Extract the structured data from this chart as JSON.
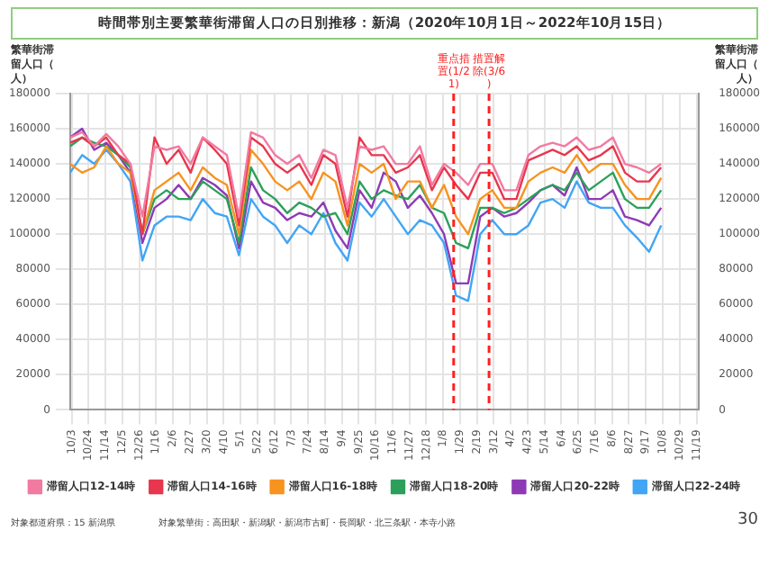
{
  "chart_data": {
    "type": "line",
    "title": "時間帯別主要繁華街滞留人口の日別推移：新潟（2020年10月1日～2022年10月15日）",
    "ylabel": "繁華街滞留人口（人）",
    "y2label": "繁華街滞留人口（人）",
    "x": [
      "2020-10-01",
      "2020-10-16",
      "2020-10-31",
      "2020-11-15",
      "2020-11-30",
      "2020-12-15",
      "2020-12-30",
      "2021-01-14",
      "2021-01-29",
      "2021-02-13",
      "2021-02-28",
      "2021-03-15",
      "2021-03-30",
      "2021-04-14",
      "2021-04-29",
      "2021-05-14",
      "2021-05-29",
      "2021-06-13",
      "2021-06-28",
      "2021-07-13",
      "2021-07-28",
      "2021-08-12",
      "2021-08-27",
      "2021-09-11",
      "2021-09-26",
      "2021-10-11",
      "2021-10-26",
      "2021-11-10",
      "2021-11-25",
      "2021-12-10",
      "2021-12-25",
      "2022-01-09",
      "2022-01-24",
      "2022-02-08",
      "2022-02-23",
      "2022-03-10",
      "2022-03-25",
      "2022-04-09",
      "2022-04-24",
      "2022-05-09",
      "2022-05-24",
      "2022-06-08",
      "2022-06-23",
      "2022-07-08",
      "2022-07-23",
      "2022-08-07",
      "2022-08-22",
      "2022-09-06",
      "2022-09-21",
      "2022-10-06"
    ],
    "series": [
      {
        "name": "滞留人口12-14時",
        "color": "#f27aa0",
        "values": [
          155000,
          158000,
          150000,
          157000,
          150000,
          140000,
          110000,
          150000,
          148000,
          150000,
          140000,
          155000,
          150000,
          145000,
          110000,
          158000,
          155000,
          145000,
          140000,
          145000,
          132000,
          148000,
          145000,
          115000,
          150000,
          148000,
          150000,
          140000,
          140000,
          150000,
          128000,
          140000,
          135000,
          128000,
          140000,
          140000,
          125000,
          125000,
          145000,
          150000,
          152000,
          150000,
          155000,
          148000,
          150000,
          155000,
          140000,
          138000,
          135000,
          140000
        ]
      },
      {
        "name": "滞留人口14-16時",
        "color": "#e8364e",
        "values": [
          152000,
          155000,
          150000,
          155000,
          145000,
          140000,
          100000,
          155000,
          140000,
          148000,
          135000,
          155000,
          148000,
          140000,
          105000,
          155000,
          150000,
          140000,
          135000,
          140000,
          128000,
          145000,
          140000,
          110000,
          155000,
          145000,
          145000,
          135000,
          138000,
          145000,
          125000,
          138000,
          128000,
          120000,
          135000,
          135000,
          120000,
          120000,
          142000,
          145000,
          148000,
          145000,
          150000,
          142000,
          145000,
          150000,
          135000,
          130000,
          130000,
          138000
        ]
      },
      {
        "name": "滞留人口16-18時",
        "color": "#f7931e",
        "values": [
          140000,
          135000,
          138000,
          150000,
          140000,
          135000,
          100000,
          125000,
          130000,
          135000,
          125000,
          138000,
          132000,
          128000,
          100000,
          148000,
          140000,
          130000,
          125000,
          130000,
          120000,
          135000,
          130000,
          105000,
          140000,
          135000,
          140000,
          120000,
          130000,
          130000,
          115000,
          128000,
          110000,
          100000,
          120000,
          125000,
          115000,
          115000,
          130000,
          135000,
          138000,
          135000,
          145000,
          135000,
          140000,
          140000,
          128000,
          120000,
          120000,
          132000
        ]
      },
      {
        "name": "滞留人口18-20時",
        "color": "#2ca05a",
        "values": [
          150000,
          155000,
          152000,
          150000,
          145000,
          138000,
          100000,
          120000,
          125000,
          120000,
          120000,
          130000,
          125000,
          120000,
          95000,
          138000,
          125000,
          120000,
          112000,
          118000,
          115000,
          110000,
          112000,
          100000,
          130000,
          120000,
          125000,
          122000,
          120000,
          128000,
          115000,
          112000,
          95000,
          92000,
          115000,
          115000,
          112000,
          115000,
          120000,
          125000,
          128000,
          125000,
          135000,
          125000,
          130000,
          135000,
          120000,
          115000,
          115000,
          125000
        ]
      },
      {
        "name": "滞留人口20-22時",
        "color": "#8e3ab5",
        "values": [
          155000,
          160000,
          148000,
          152000,
          145000,
          135000,
          95000,
          115000,
          120000,
          128000,
          120000,
          132000,
          128000,
          122000,
          92000,
          130000,
          118000,
          115000,
          108000,
          112000,
          110000,
          118000,
          102000,
          92000,
          125000,
          115000,
          135000,
          130000,
          115000,
          122000,
          112000,
          100000,
          72000,
          72000,
          110000,
          115000,
          110000,
          112000,
          118000,
          125000,
          128000,
          122000,
          138000,
          120000,
          120000,
          125000,
          110000,
          108000,
          105000,
          115000
        ]
      },
      {
        "name": "滞留人口22-24時",
        "color": "#42a5f5",
        "values": [
          135000,
          145000,
          140000,
          148000,
          140000,
          130000,
          85000,
          105000,
          110000,
          110000,
          108000,
          120000,
          112000,
          110000,
          88000,
          120000,
          110000,
          105000,
          95000,
          105000,
          100000,
          112000,
          95000,
          85000,
          118000,
          110000,
          120000,
          110000,
          100000,
          108000,
          105000,
          95000,
          65000,
          62000,
          100000,
          108000,
          100000,
          100000,
          105000,
          118000,
          120000,
          115000,
          130000,
          118000,
          115000,
          115000,
          105000,
          98000,
          90000,
          105000
        ]
      }
    ],
    "xlim": [
      "2020-10-01",
      "2022-11-22"
    ],
    "xticks": [
      {
        "value": "2020-10-03",
        "label": "10/3"
      },
      {
        "value": "2020-10-24",
        "label": "10/24"
      },
      {
        "value": "2020-11-14",
        "label": "11/14"
      },
      {
        "value": "2020-12-05",
        "label": "12/5"
      },
      {
        "value": "2020-12-26",
        "label": "12/26"
      },
      {
        "value": "2021-01-16",
        "label": "1/16"
      },
      {
        "value": "2021-02-06",
        "label": "2/6"
      },
      {
        "value": "2021-02-27",
        "label": "2/27"
      },
      {
        "value": "2021-03-20",
        "label": "3/20"
      },
      {
        "value": "2021-04-10",
        "label": "4/10"
      },
      {
        "value": "2021-05-01",
        "label": "5/1"
      },
      {
        "value": "2021-05-22",
        "label": "5/22"
      },
      {
        "value": "2021-06-12",
        "label": "6/12"
      },
      {
        "value": "2021-07-03",
        "label": "7/3"
      },
      {
        "value": "2021-07-24",
        "label": "7/24"
      },
      {
        "value": "2021-08-14",
        "label": "8/14"
      },
      {
        "value": "2021-09-04",
        "label": "9/4"
      },
      {
        "value": "2021-09-25",
        "label": "9/25"
      },
      {
        "value": "2021-10-16",
        "label": "10/16"
      },
      {
        "value": "2021-11-06",
        "label": "11/6"
      },
      {
        "value": "2021-11-27",
        "label": "11/27"
      },
      {
        "value": "2021-12-18",
        "label": "12/18"
      },
      {
        "value": "2022-01-08",
        "label": "1/8"
      },
      {
        "value": "2022-01-29",
        "label": "1/29"
      },
      {
        "value": "2022-02-19",
        "label": "2/19"
      },
      {
        "value": "2022-03-12",
        "label": "3/12"
      },
      {
        "value": "2022-04-02",
        "label": "4/2"
      },
      {
        "value": "2022-04-23",
        "label": "4/23"
      },
      {
        "value": "2022-05-14",
        "label": "5/14"
      },
      {
        "value": "2022-06-04",
        "label": "6/4"
      },
      {
        "value": "2022-06-25",
        "label": "6/25"
      },
      {
        "value": "2022-07-16",
        "label": "7/16"
      },
      {
        "value": "2022-08-06",
        "label": "8/6"
      },
      {
        "value": "2022-08-27",
        "label": "8/27"
      },
      {
        "value": "2022-09-17",
        "label": "9/17"
      },
      {
        "value": "2022-10-08",
        "label": "10/8"
      },
      {
        "value": "2022-10-29",
        "label": "10/29"
      },
      {
        "value": "2022-11-19",
        "label": "11/19"
      }
    ],
    "ylim": [
      0,
      180000
    ],
    "yticks": [
      0,
      20000,
      40000,
      60000,
      80000,
      100000,
      120000,
      140000,
      160000,
      180000
    ],
    "y2lim": [
      0,
      180000
    ],
    "y2ticks": [
      0,
      20000,
      40000,
      60000,
      80000,
      100000,
      120000,
      140000,
      160000,
      180000
    ],
    "ref_lines": [
      {
        "axis": "x",
        "value": "2022-01-21",
        "label": "重点措置(1/21)",
        "color": "#ff2020",
        "line_style": "dashed"
      },
      {
        "axis": "x",
        "value": "2022-03-06",
        "label": "措置解除(3/6)",
        "color": "#ff2020",
        "line_style": "dashed"
      }
    ],
    "grid": true,
    "legend": "bottom",
    "line_style": "solid",
    "annotations": [
      "対象都道府県：15 新潟県",
      "対象繁華街：高田駅・新潟駅・新潟市古町・長岡駅・北三条駅・本寺小路",
      "30"
    ]
  }
}
